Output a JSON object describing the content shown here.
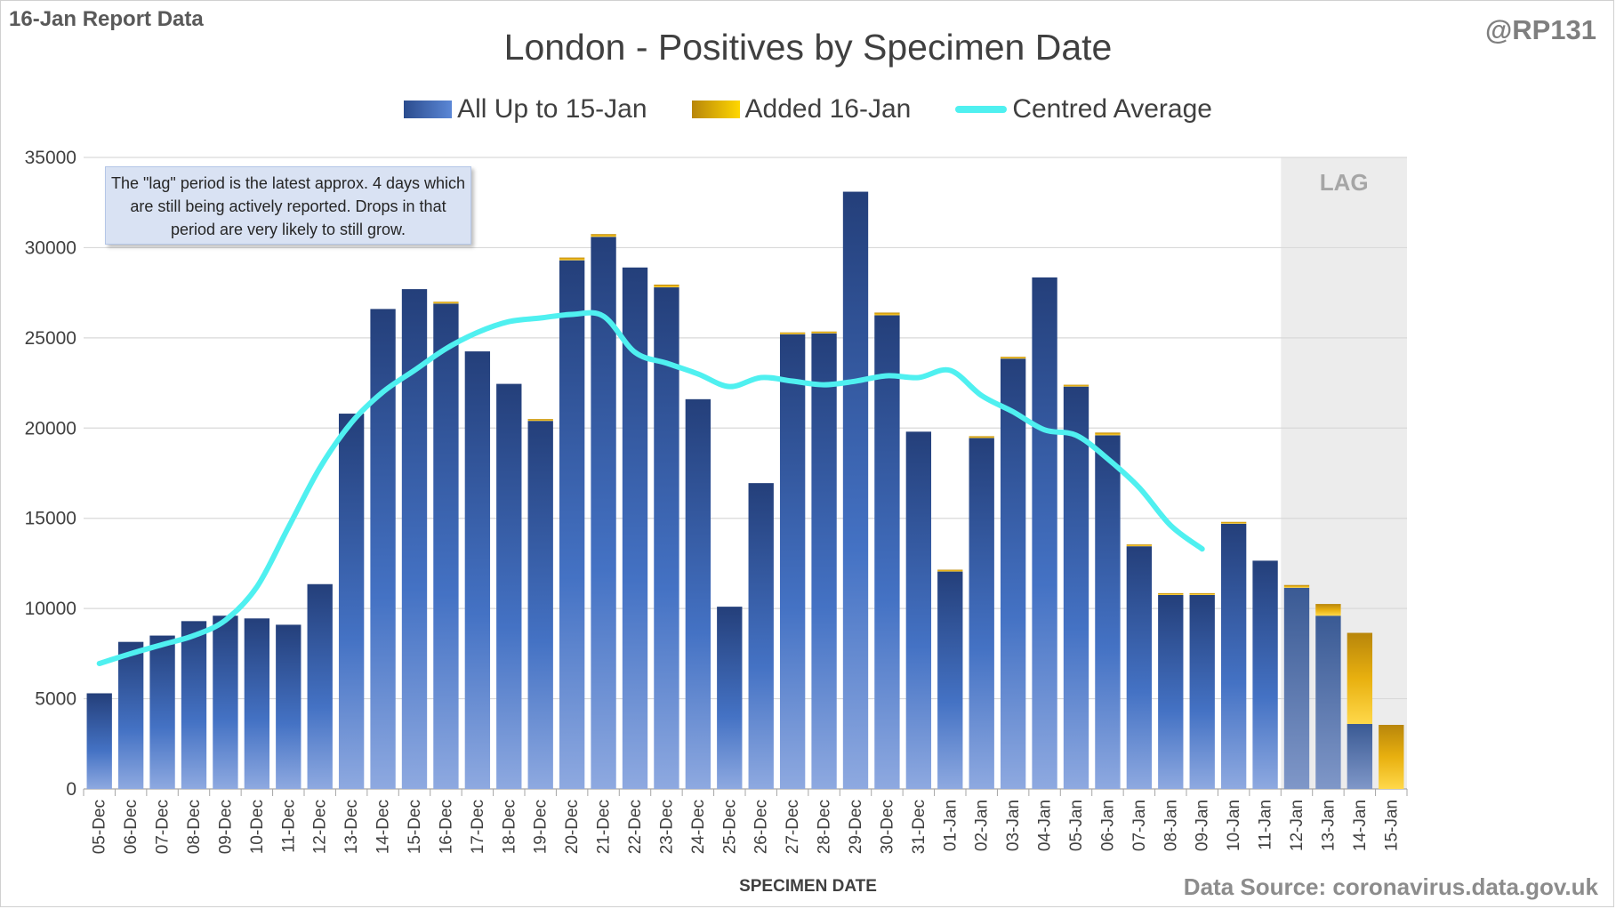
{
  "report_tag": "16-Jan Report Data",
  "handle": "@RP131",
  "source": "Data Source: coronavirus.data.gov.uk",
  "note": "The \"lag\" period is the latest approx. 4 days which are still being actively reported.  Drops in that period are very likely to still grow.",
  "colors": {
    "base_bar": "#4472c4",
    "added_bar": "#ffc000",
    "average_line": "#4ff0f0",
    "lag_shade": "#ececec"
  },
  "chart_data": {
    "type": "bar",
    "title": "London - Positives by Specimen Date",
    "xlabel": "SPECIMEN DATE",
    "ylabel": "",
    "ylim": [
      0,
      35000
    ],
    "yticks": [
      0,
      5000,
      10000,
      15000,
      20000,
      25000,
      30000,
      35000
    ],
    "stacked": true,
    "grid": true,
    "legend_position": "top",
    "lag_label": "LAG",
    "lag_categories": [
      "12-Jan",
      "13-Jan",
      "14-Jan",
      "15-Jan"
    ],
    "categories": [
      "05-Dec",
      "06-Dec",
      "07-Dec",
      "08-Dec",
      "09-Dec",
      "10-Dec",
      "11-Dec",
      "12-Dec",
      "13-Dec",
      "14-Dec",
      "15-Dec",
      "16-Dec",
      "17-Dec",
      "18-Dec",
      "19-Dec",
      "20-Dec",
      "21-Dec",
      "22-Dec",
      "23-Dec",
      "24-Dec",
      "25-Dec",
      "26-Dec",
      "27-Dec",
      "28-Dec",
      "29-Dec",
      "30-Dec",
      "31-Dec",
      "01-Jan",
      "02-Jan",
      "03-Jan",
      "04-Jan",
      "05-Jan",
      "06-Jan",
      "07-Jan",
      "08-Jan",
      "09-Jan",
      "10-Jan",
      "11-Jan",
      "12-Jan",
      "13-Jan",
      "14-Jan",
      "15-Jan"
    ],
    "series": [
      {
        "name": "All Up to 15-Jan",
        "values": [
          5300,
          8150,
          8500,
          9300,
          9600,
          9450,
          9100,
          11350,
          20800,
          26600,
          27700,
          26900,
          24250,
          22450,
          20400,
          29300,
          30600,
          28900,
          27800,
          21600,
          10100,
          16950,
          25200,
          25250,
          33100,
          26250,
          19800,
          12050,
          19450,
          23850,
          28350,
          22300,
          19600,
          13450,
          10750,
          10750,
          14700,
          12650,
          11150,
          9600,
          3600,
          0
        ]
      },
      {
        "name": "Added 16-Jan",
        "values": [
          0,
          0,
          0,
          0,
          0,
          0,
          0,
          0,
          0,
          0,
          0,
          100,
          0,
          0,
          100,
          150,
          150,
          0,
          150,
          0,
          0,
          0,
          100,
          100,
          0,
          150,
          0,
          100,
          100,
          100,
          0,
          100,
          150,
          100,
          100,
          100,
          100,
          0,
          150,
          650,
          5050,
          3550
        ]
      },
      {
        "name": "Centred Average",
        "type": "line",
        "values": [
          6950,
          7500,
          8000,
          8500,
          9350,
          11200,
          14500,
          17800,
          20300,
          22000,
          23200,
          24400,
          25300,
          25900,
          26100,
          26300,
          26200,
          24200,
          23600,
          23000,
          22300,
          22800,
          22600,
          22400,
          22600,
          22900,
          22800,
          23200,
          21800,
          20900,
          19900,
          19600,
          18300,
          16700,
          14600,
          13300,
          null,
          null,
          null,
          null,
          null,
          null
        ]
      }
    ]
  }
}
